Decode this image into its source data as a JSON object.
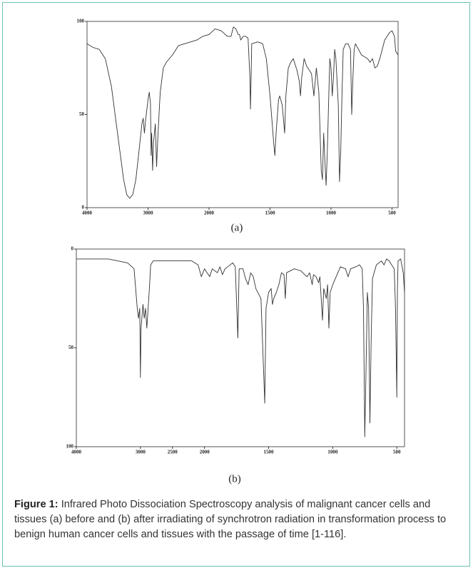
{
  "chart_data": [
    {
      "type": "line",
      "title": "(a)",
      "color": "#333333",
      "x": [
        4000,
        3900,
        3800,
        3700,
        3600,
        3500,
        3400,
        3350,
        3300,
        3250,
        3200,
        3150,
        3100,
        3080,
        3060,
        3040,
        3000,
        2980,
        2960,
        2950,
        2940,
        2925,
        2910,
        2880,
        2860,
        2850,
        2820,
        2800,
        2750,
        2700,
        2600,
        2500,
        2400,
        2300,
        2200,
        2100,
        2000,
        1950,
        1900,
        1850,
        1820,
        1800,
        1780,
        1760,
        1750,
        1740,
        1720,
        1700,
        1680,
        1665,
        1660,
        1655,
        1650,
        1600,
        1560,
        1530,
        1500,
        1470,
        1460,
        1450,
        1430,
        1420,
        1400,
        1380,
        1370,
        1350,
        1330,
        1310,
        1280,
        1260,
        1250,
        1240,
        1220,
        1200,
        1180,
        1160,
        1140,
        1120,
        1100,
        1080,
        1070,
        1060,
        1050,
        1040,
        1030,
        1020,
        1010,
        1000,
        990,
        980,
        970,
        960,
        940,
        930,
        920,
        910,
        900,
        880,
        860,
        840,
        830,
        820,
        810,
        800,
        750,
        700,
        680,
        660,
        640,
        620,
        600,
        560,
        520,
        500,
        480,
        470,
        450
      ],
      "values": [
        88,
        86,
        85,
        80,
        65,
        40,
        15,
        7,
        5,
        7,
        15,
        30,
        45,
        48,
        40,
        47,
        58,
        62,
        56,
        28,
        40,
        20,
        35,
        45,
        22,
        30,
        50,
        62,
        75,
        78,
        82,
        87,
        88,
        89,
        90,
        92,
        93,
        96,
        95,
        92,
        92,
        97,
        96,
        93,
        93,
        90,
        92,
        92,
        91,
        70,
        53,
        70,
        88,
        89,
        88,
        80,
        60,
        35,
        28,
        40,
        58,
        60,
        55,
        40,
        60,
        75,
        78,
        80,
        74,
        68,
        60,
        70,
        80,
        76,
        74,
        72,
        60,
        75,
        62,
        20,
        15,
        40,
        25,
        12,
        30,
        55,
        80,
        75,
        60,
        70,
        85,
        80,
        55,
        14,
        30,
        60,
        85,
        88,
        88,
        85,
        50,
        70,
        85,
        88,
        82,
        80,
        78,
        80,
        75,
        76,
        80,
        90,
        94,
        95,
        92,
        84,
        82
      ],
      "xlim": [
        4000,
        450
      ],
      "ylim": [
        0,
        100
      ],
      "xticks": [
        4000,
        3000,
        2000,
        1500,
        1000,
        500
      ],
      "yticks": [
        0,
        50,
        100
      ]
    },
    {
      "type": "line",
      "title": "(b)",
      "color": "#333333",
      "x": [
        4000,
        3500,
        3200,
        3100,
        3050,
        3030,
        3010,
        3000,
        2990,
        2960,
        2940,
        2920,
        2900,
        2880,
        2860,
        2840,
        2800,
        2500,
        2200,
        2100,
        2050,
        2000,
        1960,
        1940,
        1900,
        1880,
        1860,
        1840,
        1800,
        1780,
        1760,
        1740,
        1730,
        1700,
        1680,
        1660,
        1640,
        1620,
        1600,
        1560,
        1530,
        1520,
        1500,
        1480,
        1470,
        1460,
        1440,
        1420,
        1400,
        1380,
        1370,
        1360,
        1300,
        1250,
        1200,
        1180,
        1160,
        1150,
        1130,
        1110,
        1100,
        1080,
        1070,
        1050,
        1040,
        1030,
        1020,
        1000,
        960,
        940,
        900,
        880,
        860,
        820,
        790,
        770,
        760,
        750,
        740,
        730,
        720,
        710,
        700,
        690,
        660,
        620,
        600,
        580,
        560,
        540,
        520,
        510,
        500,
        495,
        490,
        470,
        450,
        440
      ],
      "values": [
        5,
        5,
        7,
        10,
        30,
        35,
        30,
        65,
        40,
        28,
        35,
        30,
        40,
        30,
        20,
        8,
        6,
        6,
        6,
        8,
        14,
        10,
        14,
        10,
        12,
        9,
        13,
        10,
        8,
        7,
        9,
        45,
        10,
        10,
        15,
        18,
        12,
        14,
        20,
        25,
        78,
        30,
        22,
        20,
        28,
        25,
        22,
        18,
        12,
        13,
        25,
        12,
        10,
        11,
        14,
        12,
        18,
        13,
        14,
        17,
        14,
        36,
        20,
        25,
        18,
        40,
        22,
        18,
        12,
        9,
        10,
        14,
        10,
        9,
        8,
        10,
        30,
        95,
        60,
        22,
        30,
        88,
        45,
        15,
        8,
        6,
        8,
        5,
        6,
        8,
        10,
        30,
        75,
        20,
        6,
        5,
        12,
        22
      ],
      "xlim": [
        4000,
        440
      ],
      "ylim": [
        100,
        0
      ],
      "xticks": [
        4000,
        3000,
        2500,
        2000,
        1500,
        1000,
        500
      ],
      "yticks": [
        0,
        50,
        100
      ]
    }
  ],
  "caption": {
    "label": "Figure 1:",
    "text": "Infrared Photo Dissociation Spectroscopy analysis of malignant cancer cells and tissues (a) before and (b) after irradiating of synchrotron radiation in transformation process to benign human cancer cells and tissues with the passage of time [1-116]."
  }
}
